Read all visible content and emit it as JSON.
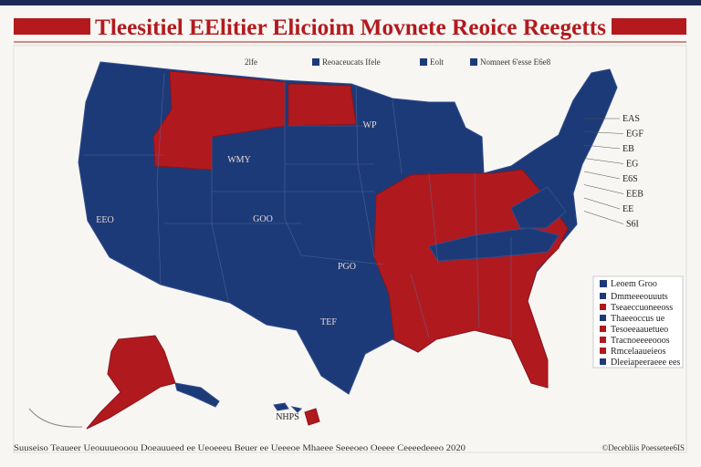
{
  "header": {
    "title": "Tleesitiel EElitier Elicioim Movnete Reoice Reegetts"
  },
  "top_legend": [
    {
      "label": "2lfe",
      "color": null
    },
    {
      "label": "Reoaceucats Ifele",
      "color": "#1d3a78"
    },
    {
      "label": "Eolt",
      "color": "#1d3a78"
    },
    {
      "label": "Nomneet 6'esse E6e8",
      "color": "#1d3a78"
    }
  ],
  "state_labels": [
    {
      "label": "WMY",
      "at": "wy"
    },
    {
      "label": "GOO",
      "at": "co"
    },
    {
      "label": "TEF",
      "at": "tx"
    },
    {
      "label": "EEO",
      "at": "ca"
    },
    {
      "label": "PGO",
      "at": "ok"
    },
    {
      "label": "WP",
      "at": "mn"
    },
    {
      "label": "NHPS",
      "at": "hi"
    }
  ],
  "east_labels": [
    "EAS",
    "EGF",
    "EB",
    "EG",
    "E6S",
    "EEB",
    "EE",
    "S6I"
  ],
  "side_legend": {
    "title": "Leoem Groo",
    "items": [
      {
        "label": "Dmmeeeouuuts",
        "color": "#1d3a78"
      },
      {
        "label": "Tseaeccuoneeoss",
        "color": "#b01a1f"
      },
      {
        "label": "Thaeeoccus ue",
        "color": "#1d3a78"
      },
      {
        "label": "Tesoeeaauetueo",
        "color": "#b01a1f"
      },
      {
        "label": "Tracnoeeeeooos",
        "color": "#b01a1f"
      },
      {
        "label": "Rmcelaaueieos",
        "color": "#b01a1f"
      },
      {
        "label": "Dleeiapeeraeee ees",
        "color": "#1d3a78"
      }
    ]
  },
  "footer": {
    "source": "Suuseiso Teaueer Ueouuueooou Doeauueed ee Ueoeeeu Beuer ee Ueeeoe Mhaeee Seeeoeo Oeeee Ceeeedeeeo 2020",
    "credit": "©Decebliis Poessetee6IS"
  }
}
